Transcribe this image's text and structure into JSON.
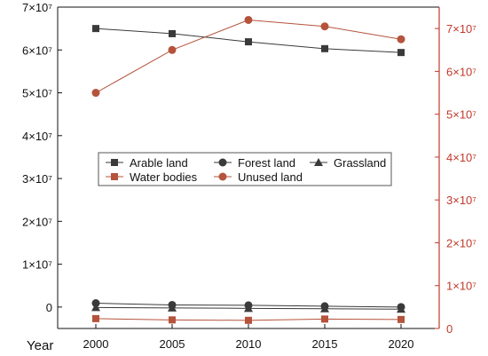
{
  "chart_data": {
    "type": "line",
    "xlabel": "Year",
    "x": [
      2000,
      2005,
      2010,
      2015,
      2020
    ],
    "left_axis": {
      "range": [
        -5000000,
        70000000
      ],
      "ticks": [
        {
          "value": 0,
          "label": "0"
        },
        {
          "value": 10000000,
          "label": "1×10⁷"
        },
        {
          "value": 20000000,
          "label": "2×10⁷"
        },
        {
          "value": 30000000,
          "label": "3×10⁷"
        },
        {
          "value": 40000000,
          "label": "4×10⁷"
        },
        {
          "value": 50000000,
          "label": "5×10⁷"
        },
        {
          "value": 60000000,
          "label": "6×10⁷"
        },
        {
          "value": 70000000,
          "label": "7×10⁷"
        }
      ],
      "color": "#111111"
    },
    "right_axis": {
      "range": [
        0,
        75000000
      ],
      "ticks": [
        {
          "value": 0,
          "label": "0"
        },
        {
          "value": 10000000,
          "label": "1×10⁷"
        },
        {
          "value": 20000000,
          "label": "2×10⁷"
        },
        {
          "value": 30000000,
          "label": "3×10⁷"
        },
        {
          "value": 40000000,
          "label": "4×10⁷"
        },
        {
          "value": 50000000,
          "label": "5×10⁷"
        },
        {
          "value": 60000000,
          "label": "6×10⁷"
        },
        {
          "value": 70000000,
          "label": "7×10⁷"
        }
      ],
      "color": "#c0392b"
    },
    "series": [
      {
        "name": "Arable land",
        "axis": "left",
        "marker": "square",
        "color": "#3a3a3a",
        "values": [
          65000000,
          63800000,
          61900000,
          60300000,
          59400000
        ]
      },
      {
        "name": "Forest land",
        "axis": "left",
        "marker": "circle",
        "color": "#3a3a3a",
        "values": [
          900000,
          500000,
          400000,
          200000,
          0
        ]
      },
      {
        "name": "Grassland",
        "axis": "left",
        "marker": "triangle",
        "color": "#3a3a3a",
        "values": [
          -100000,
          -200000,
          -300000,
          -400000,
          -500000
        ]
      },
      {
        "name": "Water bodies",
        "axis": "right",
        "marker": "square",
        "color": "#b5533c",
        "values": [
          2300000,
          2000000,
          1900000,
          2200000,
          2100000
        ]
      },
      {
        "name": "Unused land",
        "axis": "right",
        "marker": "circle",
        "color": "#b5533c",
        "values": [
          55000000,
          65000000,
          72000000,
          70500000,
          67500000
        ]
      }
    ],
    "legend_position": "center-left",
    "grid": false
  }
}
